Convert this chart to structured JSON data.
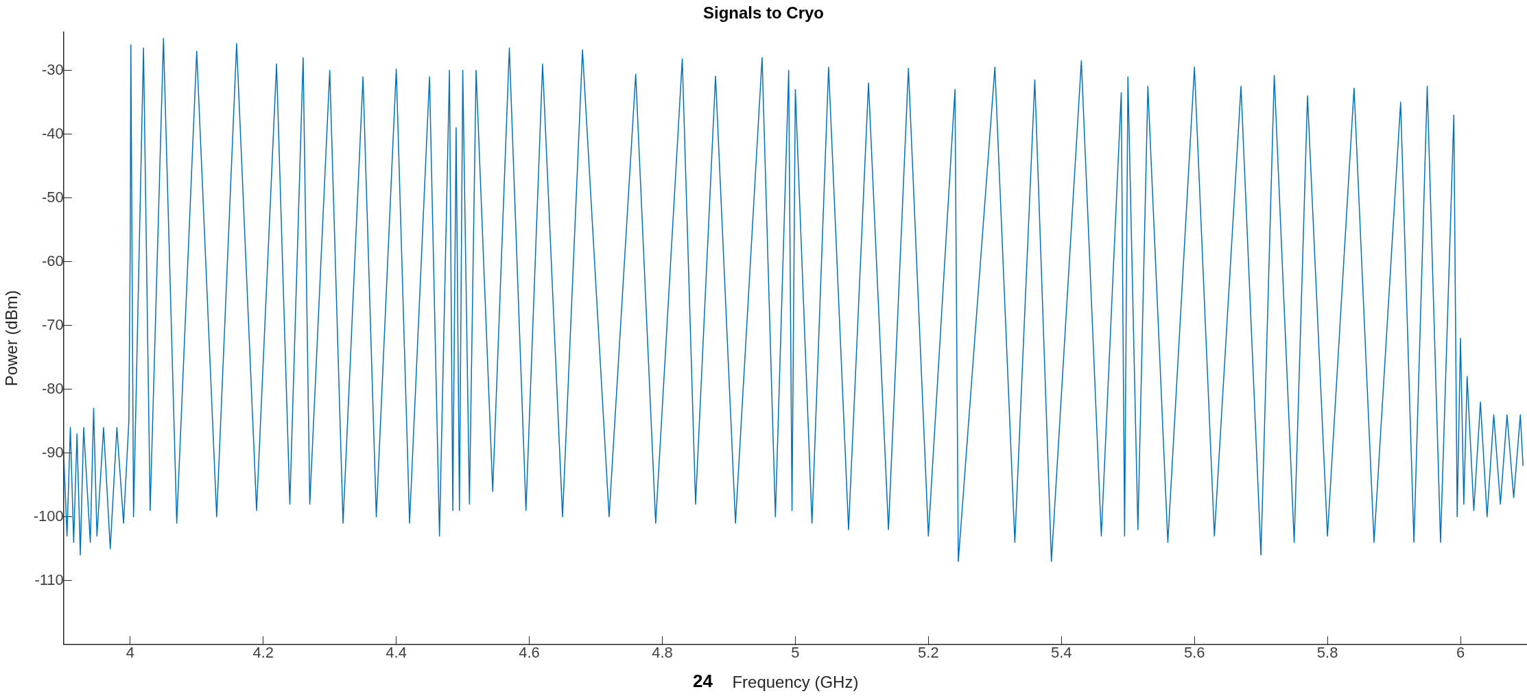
{
  "chart_data": {
    "type": "line",
    "title": "Signals to Cryo",
    "xlabel": "Frequency (GHz)",
    "ylabel": "Power (dBm)",
    "annotations": [
      "24"
    ],
    "xlim": [
      3.9,
      6.1
    ],
    "ylim": [
      -120,
      -24
    ],
    "xticks": [
      4,
      4.2,
      4.4,
      4.6,
      4.8,
      5,
      5.2,
      5.4,
      5.6,
      5.8,
      6
    ],
    "yticks": [
      -110,
      -100,
      -90,
      -80,
      -70,
      -60,
      -50,
      -40,
      -30
    ],
    "grid": false,
    "legend": false,
    "marker": "none",
    "line_style": "solid",
    "series": [
      {
        "color": "#0072bd",
        "x": [
          3.9,
          3.905,
          3.91,
          3.915,
          3.92,
          3.925,
          3.93,
          3.94,
          3.945,
          3.95,
          3.96,
          3.97,
          3.98,
          3.99,
          3.998,
          4.0,
          4.001,
          4.005,
          4.02,
          4.03,
          4.05,
          4.07,
          4.1,
          4.13,
          4.16,
          4.19,
          4.22,
          4.24,
          4.26,
          4.27,
          4.3,
          4.32,
          4.35,
          4.37,
          4.4,
          4.42,
          4.45,
          4.465,
          4.48,
          4.485,
          4.49,
          4.495,
          4.5,
          4.51,
          4.52,
          4.545,
          4.57,
          4.595,
          4.62,
          4.65,
          4.68,
          4.72,
          4.76,
          4.79,
          4.83,
          4.85,
          4.88,
          4.91,
          4.95,
          4.97,
          4.99,
          4.995,
          5.0,
          5.025,
          5.05,
          5.08,
          5.11,
          5.14,
          5.17,
          5.2,
          5.24,
          5.245,
          5.3,
          5.33,
          5.36,
          5.385,
          5.43,
          5.46,
          5.49,
          5.495,
          5.5,
          5.515,
          5.53,
          5.56,
          5.6,
          5.63,
          5.67,
          5.7,
          5.72,
          5.75,
          5.77,
          5.8,
          5.84,
          5.87,
          5.91,
          5.93,
          5.95,
          5.97,
          5.99,
          5.995,
          6.0,
          6.005,
          6.01,
          6.02,
          6.03,
          6.04,
          6.05,
          6.06,
          6.07,
          6.08,
          6.09,
          6.094
        ],
        "values": [
          -90,
          -103,
          -86,
          -104,
          -87,
          -106,
          -86,
          -104,
          -83,
          -103,
          -86,
          -105,
          -86,
          -101,
          -85,
          -58,
          -26,
          -100,
          -26.5,
          -99,
          -25,
          -101,
          -27,
          -100,
          -25.8,
          -99,
          -29,
          -98,
          -28,
          -98,
          -30,
          -101,
          -31,
          -100,
          -29.8,
          -101,
          -31,
          -103,
          -30,
          -99,
          -39,
          -99,
          -30,
          -98,
          -30,
          -96,
          -26.5,
          -99,
          -29,
          -100,
          -26.8,
          -100,
          -30.6,
          -101,
          -28.2,
          -98,
          -30.9,
          -101,
          -28,
          -100,
          -30,
          -99,
          -33,
          -101,
          -29.5,
          -102,
          -32,
          -102,
          -29.7,
          -103,
          -33,
          -107,
          -29.5,
          -104,
          -31.5,
          -107,
          -28.5,
          -103,
          -33.5,
          -103,
          -31,
          -102,
          -32.5,
          -104,
          -29.5,
          -103,
          -32.5,
          -106,
          -30.8,
          -104,
          -34,
          -103,
          -32.8,
          -104,
          -35,
          -104,
          -32.5,
          -104,
          -37,
          -100,
          -72,
          -98,
          -78,
          -99,
          -82,
          -100,
          -84,
          -98,
          -84,
          -97,
          -84,
          -92
        ]
      }
    ]
  }
}
